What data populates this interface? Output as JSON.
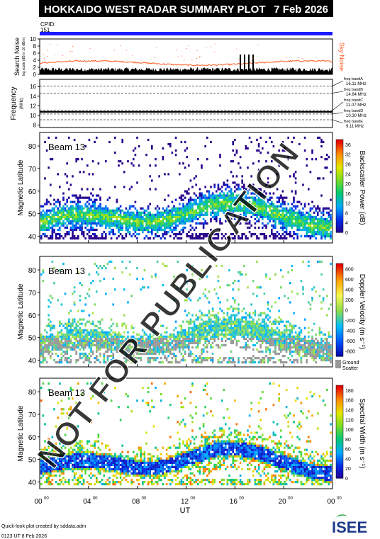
{
  "header": {
    "title": "HOKKAIDO WEST RADAR SUMMARY PLOT",
    "date": "7 Feb 2026",
    "cpid_label": "CPID:",
    "cpid_value": "151"
  },
  "colors": {
    "title_bg": "#000000",
    "title_fg": "#ffffff",
    "cpid_bar": "#1a1aff",
    "sky_noise": "#ff5a1f",
    "search_noise": "#000000",
    "ground_scatter": "#999999"
  },
  "noise_panel": {
    "ylabel": "Search Noise",
    "ysublabel": "log scale (dB in 10 dBm)",
    "legend": "Sky Noise",
    "yticks": [
      "0",
      "2",
      "4",
      "6",
      "8",
      "10"
    ],
    "ylim": [
      0,
      10
    ]
  },
  "freq_panel": {
    "ylabel": "Frequency",
    "yunit": "(MHz)",
    "yticks": [
      "8",
      "10",
      "12",
      "14",
      "16"
    ],
    "ylim": [
      7.5,
      17.5
    ],
    "bands": [
      {
        "label": "freq bandA",
        "value": "16.11 MHz",
        "mhz": 16.11
      },
      {
        "label": "freq bandB",
        "value": "14.64 MHz",
        "mhz": 14.64
      },
      {
        "label": "freq bandC",
        "value": "11.07 MHz",
        "mhz": 11.07
      },
      {
        "label": "freq bandD",
        "value": "10.30 MHz",
        "mhz": 10.3
      },
      {
        "label": "freq bandE",
        "value": "9.11 MHz",
        "mhz": 9.11
      }
    ]
  },
  "chart_data": [
    {
      "type": "heatmap",
      "name": "Beam 13",
      "ylabel": "Magnetic Latitude",
      "yticks": [
        "40",
        "50",
        "60",
        "70",
        "80"
      ],
      "ylim": [
        37,
        86
      ],
      "colorbar_label": "Backscatter Power (dB)",
      "colorbar_ticks": [
        "0",
        "4",
        "8",
        "12",
        "16",
        "20",
        "24",
        "28",
        "32",
        "36"
      ],
      "colorbar_range": [
        0,
        38
      ]
    },
    {
      "type": "heatmap",
      "name": "Beam 13",
      "ylabel": "Magnetic Latitude",
      "yticks": [
        "40",
        "50",
        "60",
        "70",
        "80"
      ],
      "ylim": [
        37,
        86
      ],
      "colorbar_label": "Doppler Velocity (m s⁻¹)",
      "colorbar_ticks": [
        "800",
        "600",
        "400",
        "200",
        "0",
        "-200",
        "-400",
        "-600",
        "-800"
      ],
      "colorbar_range": [
        -900,
        900
      ],
      "gs_label1": "Ground",
      "gs_label2": "Scatter"
    },
    {
      "type": "heatmap",
      "name": "Beam 13",
      "ylabel": "Magnetic Latitude",
      "yticks": [
        "40",
        "50",
        "60",
        "70",
        "80"
      ],
      "ylim": [
        37,
        86
      ],
      "colorbar_label": "Spectral Width (m s⁻¹)",
      "colorbar_ticks": [
        "0",
        "20",
        "40",
        "60",
        "80",
        "100",
        "120",
        "140",
        "160",
        "180"
      ],
      "colorbar_range": [
        0,
        190
      ]
    }
  ],
  "time_axis": {
    "xlabel": "UT",
    "xticks": [
      {
        "hh": "00",
        "mm": "00",
        "hour": 0
      },
      {
        "hh": "04",
        "mm": "00",
        "hour": 4
      },
      {
        "hh": "08",
        "mm": "00",
        "hour": 8
      },
      {
        "hh": "12",
        "mm": "00",
        "hour": 12
      },
      {
        "hh": "16",
        "mm": "00",
        "hour": 16
      },
      {
        "hh": "20",
        "mm": "00",
        "hour": 20
      },
      {
        "hh": "00",
        "mm": "00",
        "hour": 24
      }
    ]
  },
  "footer": {
    "credit": "Quick-look plot created by sddata.adm",
    "created": "0123 UT  8 Feb 2026",
    "logo": "ISEE"
  },
  "watermark": "NOT FOR PUBLICATION"
}
